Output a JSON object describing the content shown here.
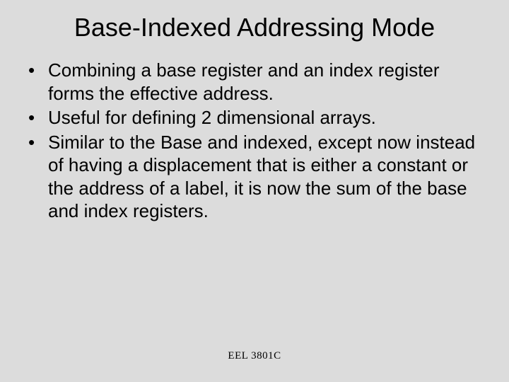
{
  "slide": {
    "background_color": "#dcdcdc",
    "text_color": "#000000",
    "title": "Base-Indexed Addressing Mode",
    "title_fontsize": 36,
    "title_fontfamily": "Verdana",
    "body_fontsize": 26,
    "body_fontfamily": "Verdana",
    "bullets": [
      "Combining a base register and an index register forms the effective address.",
      "Useful for defining 2 dimensional arrays.",
      "Similar to the Base and indexed, except now instead of having a displacement that is either a constant or the address of a label, it is now the sum of the base and index registers."
    ],
    "footer": "EEL 3801C",
    "footer_fontsize": 15,
    "footer_fontfamily": "Times New Roman"
  }
}
